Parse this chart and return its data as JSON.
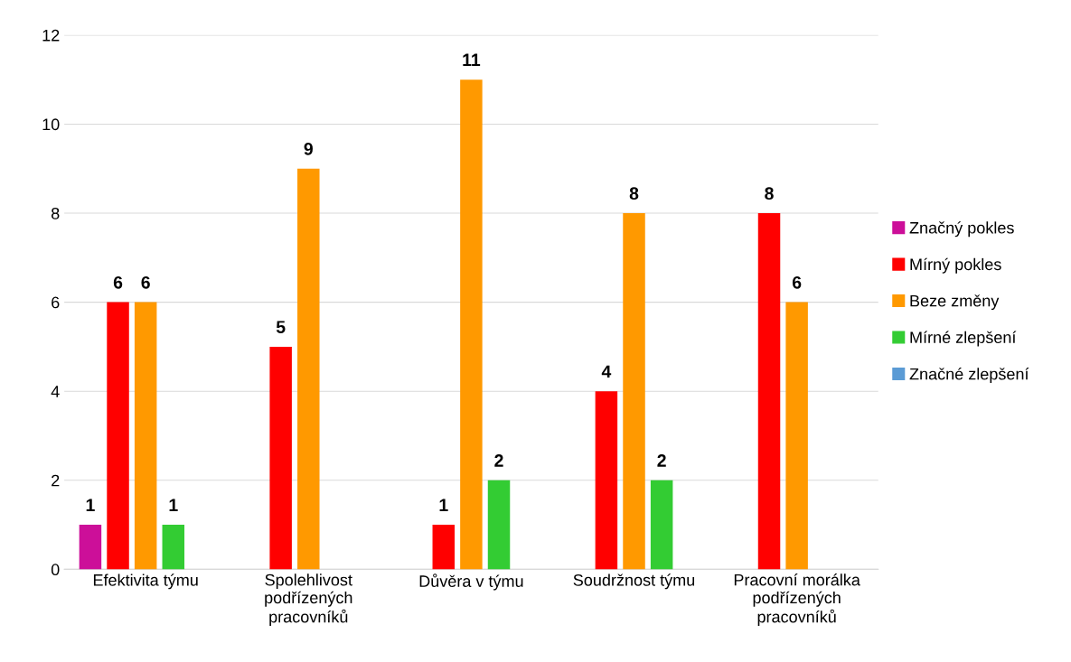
{
  "chart_data": {
    "type": "bar",
    "categories": [
      "Efektivita týmu",
      "Spolehlivost\npodřízených\npracovníků",
      "Důvěra v týmu",
      "Soudržnost týmu",
      "Pracovní morálka\npodřízených\npracovníků"
    ],
    "series": [
      {
        "name": "Značný pokles",
        "color": "#cc0f99",
        "values": [
          1,
          null,
          null,
          null,
          null
        ]
      },
      {
        "name": "Mírný pokles",
        "color": "#ff0000",
        "values": [
          6,
          5,
          1,
          4,
          8
        ]
      },
      {
        "name": "Beze změny",
        "color": "#ff9900",
        "values": [
          6,
          9,
          11,
          8,
          6
        ]
      },
      {
        "name": "Mírné zlepšení",
        "color": "#33cc33",
        "values": [
          1,
          null,
          2,
          2,
          null
        ]
      },
      {
        "name": "Značné zlepšení",
        "color": "#5b9bd5",
        "values": [
          null,
          null,
          null,
          null,
          null
        ]
      }
    ],
    "ylim": [
      0,
      12
    ],
    "yticks": [
      0,
      2,
      4,
      6,
      8,
      10,
      12
    ],
    "grid": "y",
    "legend": "right",
    "data_labels": true
  }
}
